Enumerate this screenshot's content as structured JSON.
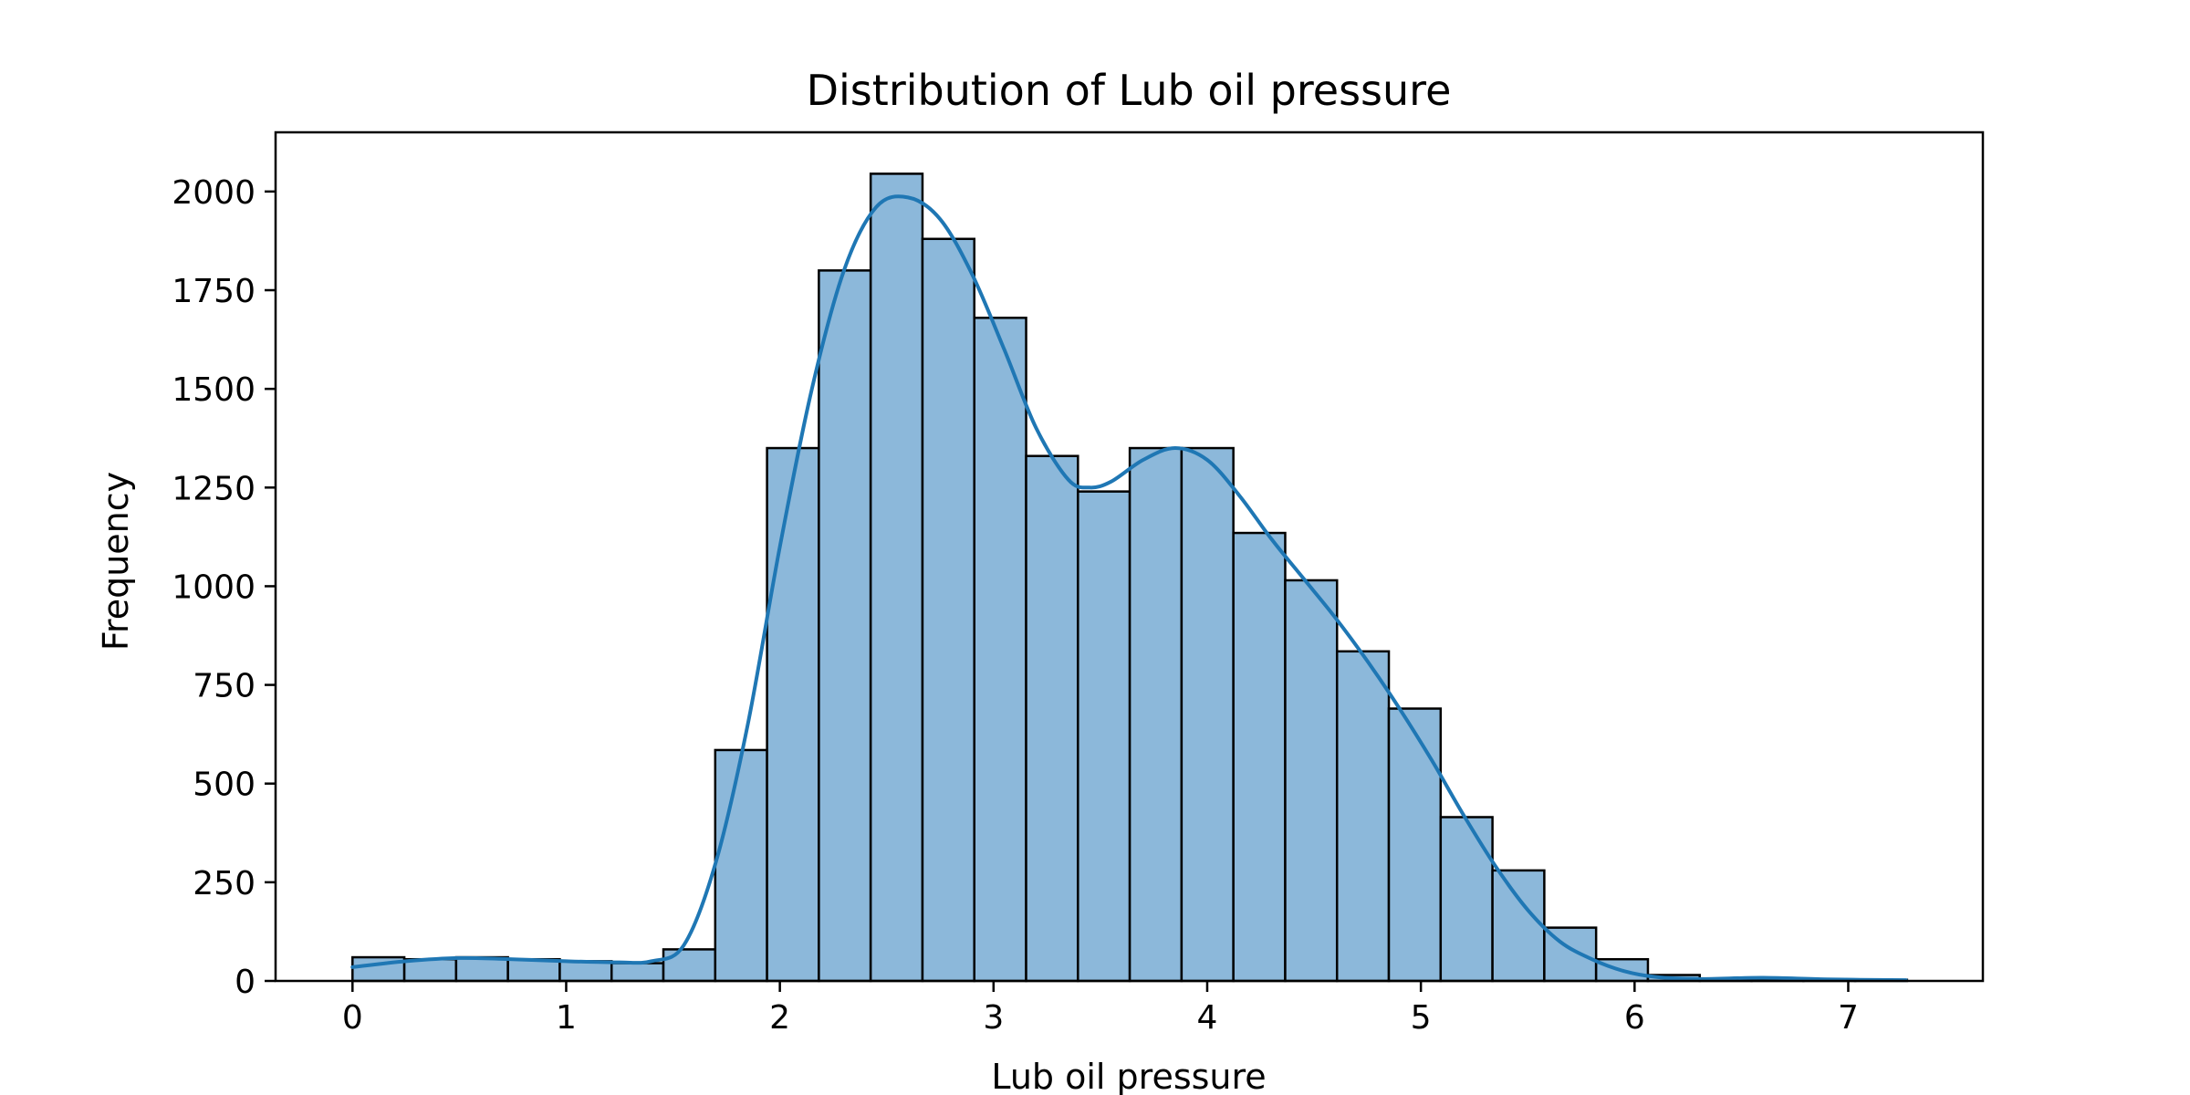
{
  "chart_data": {
    "type": "bar",
    "subtype": "histogram",
    "title": "Distribution of Lub oil pressure",
    "xlabel": "Lub oil pressure",
    "ylabel": "Frequency",
    "xlim": [
      -0.36,
      7.63
    ],
    "ylim": [
      0,
      2150
    ],
    "xticks": [
      0,
      1,
      2,
      3,
      4,
      5,
      6,
      7
    ],
    "yticks": [
      0,
      250,
      500,
      750,
      1000,
      1250,
      1500,
      1750,
      2000
    ],
    "grid": false,
    "bin_start": 0.0,
    "bin_width": 0.2425,
    "counts": [
      60,
      55,
      60,
      55,
      50,
      45,
      80,
      585,
      1350,
      1800,
      2045,
      1880,
      1680,
      1330,
      1240,
      1350,
      1350,
      1135,
      1015,
      835,
      690,
      415,
      280,
      135,
      55,
      15,
      5,
      2,
      2,
      3
    ],
    "kde": {
      "x": [
        0.0,
        0.25,
        0.5,
        0.75,
        1.0,
        1.25,
        1.4,
        1.55,
        1.7,
        1.85,
        2.0,
        2.15,
        2.3,
        2.45,
        2.6,
        2.75,
        2.9,
        3.05,
        3.2,
        3.35,
        3.45,
        3.55,
        3.7,
        3.85,
        4.0,
        4.15,
        4.3,
        4.45,
        4.6,
        4.75,
        4.9,
        5.05,
        5.2,
        5.35,
        5.5,
        5.65,
        5.8,
        5.95,
        6.1,
        6.3,
        6.6,
        6.9,
        7.27
      ],
      "y": [
        35,
        50,
        58,
        55,
        50,
        47,
        50,
        90,
        300,
        650,
        1100,
        1500,
        1800,
        1960,
        1985,
        1930,
        1790,
        1600,
        1400,
        1270,
        1250,
        1265,
        1320,
        1350,
        1320,
        1230,
        1120,
        1020,
        920,
        810,
        690,
        560,
        420,
        290,
        180,
        100,
        55,
        25,
        10,
        5,
        8,
        4,
        2
      ]
    },
    "bar_color": "#8cb8da",
    "bar_edge_color": "#000000",
    "line_color": "#1f77b4"
  }
}
